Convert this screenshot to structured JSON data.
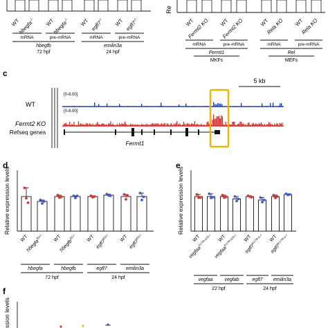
{
  "panel_a": {
    "ylabel_fragment": "",
    "groups": [
      {
        "labels": [
          "WT",
          "hbegfa"
        ],
        "sup": "-/-",
        "sublabels": [
          "mRNA",
          "pre-mRNA"
        ],
        "gene": "hbegfb",
        "stage": "72 hpf"
      },
      {
        "labels": [
          "WT",
          "egfl7"
        ],
        "sup": "-/-",
        "sublabels": [
          "mRNA",
          "pre-mRNA"
        ],
        "gene": "emilin3a",
        "stage": "24 hpf"
      }
    ]
  },
  "panel_b": {
    "ylabel_fragment": "Re",
    "bar_labels": [
      "WT",
      "Fermt2 KO",
      "WT",
      "Fermt2 KO",
      "WT",
      "Rela KO",
      "WT",
      "Rela KO"
    ],
    "sublabels": [
      "mRNA",
      "pre-mRNA",
      "mRNA",
      "pre-mRNA"
    ],
    "genes": [
      "Fermt1",
      "Rel"
    ],
    "cells": [
      "MKFs",
      "MEFs"
    ]
  },
  "panel_c": {
    "letter": "c",
    "scale_label": "5 kb",
    "tracks": [
      {
        "name": "WT",
        "range": "[0-8.00]",
        "color": "#1f3fa8"
      },
      {
        "name": "Fermt2 KO",
        "range": "[0-8.00]",
        "color": "#d42a2a"
      }
    ],
    "refseq_label": "Refseq genes",
    "gene_label": "Fermt1",
    "highlight_color": "#f0b400"
  },
  "panel_d": {
    "letter": "d",
    "ylabel": "Relative expression levels",
    "groups": [
      {
        "gene": "hbegfa",
        "labels": [
          "WT",
          "hbegfa"
        ],
        "sup": "Δ2-/-"
      },
      {
        "gene": "hbegfb",
        "labels": [
          "WT",
          "hbegfb"
        ],
        "sup": "Δ1-/-"
      },
      {
        "gene": "egfl7",
        "labels": [
          "WT",
          "egfl7"
        ],
        "sup": "Δ3-/-"
      },
      {
        "gene": "emilin3a",
        "labels": [
          "WT",
          "egfl7"
        ],
        "sup": "Δ3-/-"
      }
    ],
    "stages": [
      "72 hpf",
      "24 hpf"
    ]
  },
  "panel_e": {
    "letter": "e",
    "ylabel": "Relative expression levels",
    "groups": [
      {
        "gene": "vegfaa",
        "labels": [
          "WT",
          "vegfaa"
        ],
        "sup": "5'UTR-Δ20-/-"
      },
      {
        "gene": "vegfab",
        "labels": [
          "WT",
          "vegfaa"
        ],
        "sup": "5'UTR-Δ20-/-"
      },
      {
        "gene": "egfl7",
        "labels": [
          "WT",
          "egfl7"
        ],
        "sup": "5'UTR-Δ-/-"
      },
      {
        "gene": "emilin3a",
        "labels": [
          "WT",
          "egfl7"
        ],
        "sup": "5'UTR-Δ-/-"
      }
    ],
    "stages": [
      "22 hpf",
      "24 hpf"
    ]
  },
  "panel_f": {
    "letter": "f",
    "ylabel": "ssion levels"
  },
  "chart_data": [
    {
      "type": "bar",
      "panel": "d",
      "ylabel": "Relative expression levels",
      "categories": [
        "WT",
        "hbegfa Δ2-/-",
        "WT",
        "hbegfb Δ1-/-",
        "WT",
        "egfl7 Δ3-/-",
        "WT",
        "egfl7 Δ3-/-"
      ],
      "values": [
        1.0,
        0.86,
        1.0,
        1.0,
        1.0,
        1.04,
        1.0,
        1.0
      ],
      "points": [
        [
          1.25,
          0.95,
          0.82
        ],
        [
          0.9,
          0.8,
          0.86
        ],
        [
          1.04,
          0.97,
          0.99
        ],
        [
          1.02,
          0.96,
          1.02
        ],
        [
          1.02,
          0.98,
          1.0
        ],
        [
          1.07,
          1.03,
          1.02
        ],
        [
          1.06,
          0.92,
          1.02
        ],
        [
          1.1,
          0.9,
          0.99
        ]
      ],
      "colors": [
        "#e03131",
        "#3b5bdb"
      ]
    },
    {
      "type": "bar",
      "panel": "e",
      "ylabel": "Relative expression levels",
      "categories": [
        "WT",
        "vegfaa 5'UTR-Δ20-/-",
        "WT",
        "vegfaa 5'UTR-Δ20-/-",
        "WT",
        "egfl7 5'UTR-Δ-/-",
        "WT",
        "egfl7 5'UTR-Δ-/-"
      ],
      "values": [
        1.0,
        1.0,
        1.0,
        0.93,
        1.0,
        0.9,
        1.0,
        1.06
      ],
      "points": [
        [
          1.06,
          0.97,
          0.97
        ],
        [
          1.08,
          0.96,
          0.98
        ],
        [
          1.04,
          0.97,
          0.99
        ],
        [
          1.0,
          0.87,
          0.93
        ],
        [
          1.02,
          1.0,
          0.98
        ],
        [
          0.97,
          0.84,
          0.9
        ],
        [
          1.04,
          0.96,
          1.0
        ],
        [
          1.08,
          1.05,
          1.06
        ]
      ],
      "colors": [
        "#e03131",
        "#3b5bdb"
      ]
    }
  ]
}
